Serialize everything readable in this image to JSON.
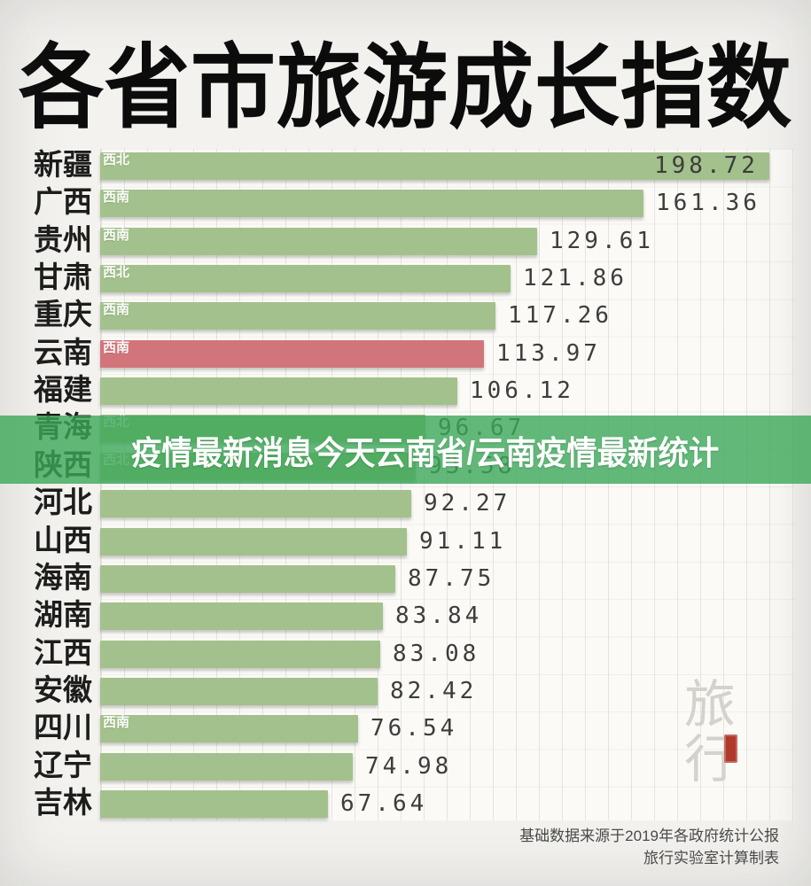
{
  "title": {
    "text": "各省市旅游成长指数"
  },
  "overlay_banner": {
    "text": "疫情最新消息今天云南省/云南疫情最新统计"
  },
  "watermark": {
    "text": "旅行"
  },
  "footer": {
    "line1": "基础数据来源于2019年各政府统计公报",
    "line2": "旅行实验室计算制表"
  },
  "colors": {
    "bar_green": "#a3c18c",
    "bar_red": "#d2757b",
    "banner_green": "#3ba858",
    "value_text": "#3d3d3b",
    "grid_line": "#e5e4e0",
    "seal_red": "#b0392c"
  },
  "chart_data": {
    "type": "bar",
    "orientation": "horizontal",
    "title": "各省市旅游成长指数",
    "xlabel": "",
    "ylabel": "",
    "xlim": [
      0,
      205
    ],
    "grid": "vertical",
    "legend": "none",
    "highlight_note": "云南 bar is red; all others green; region tag shown inside bar start for northwest/southwest provinces",
    "rows": [
      {
        "province": "新疆",
        "region": "西北",
        "value": 198.72,
        "highlight": false,
        "value_inside": true
      },
      {
        "province": "广西",
        "region": "西南",
        "value": 161.36,
        "highlight": false,
        "value_inside": false
      },
      {
        "province": "贵州",
        "region": "西南",
        "value": 129.61,
        "highlight": false,
        "value_inside": false
      },
      {
        "province": "甘肃",
        "region": "西北",
        "value": 121.86,
        "highlight": false,
        "value_inside": false
      },
      {
        "province": "重庆",
        "region": "西南",
        "value": 117.26,
        "highlight": false,
        "value_inside": false
      },
      {
        "province": "云南",
        "region": "西南",
        "value": 113.97,
        "highlight": true,
        "value_inside": false
      },
      {
        "province": "福建",
        "region": "",
        "value": 106.12,
        "highlight": false,
        "value_inside": false
      },
      {
        "province": "青海",
        "region": "西北",
        "value": 96.67,
        "highlight": false,
        "value_inside": false
      },
      {
        "province": "陕西",
        "region": "西北",
        "value": 93.58,
        "highlight": false,
        "value_inside": false
      },
      {
        "province": "河北",
        "region": "",
        "value": 92.27,
        "highlight": false,
        "value_inside": false
      },
      {
        "province": "山西",
        "region": "",
        "value": 91.11,
        "highlight": false,
        "value_inside": false
      },
      {
        "province": "海南",
        "region": "",
        "value": 87.75,
        "highlight": false,
        "value_inside": false
      },
      {
        "province": "湖南",
        "region": "",
        "value": 83.84,
        "highlight": false,
        "value_inside": false
      },
      {
        "province": "江西",
        "region": "",
        "value": 83.08,
        "highlight": false,
        "value_inside": false
      },
      {
        "province": "安徽",
        "region": "",
        "value": 82.42,
        "highlight": false,
        "value_inside": false
      },
      {
        "province": "四川",
        "region": "西南",
        "value": 76.54,
        "highlight": false,
        "value_inside": false
      },
      {
        "province": "辽宁",
        "region": "",
        "value": 74.98,
        "highlight": false,
        "value_inside": false
      },
      {
        "province": "吉林",
        "region": "",
        "value": 67.64,
        "highlight": false,
        "value_inside": false
      }
    ]
  }
}
